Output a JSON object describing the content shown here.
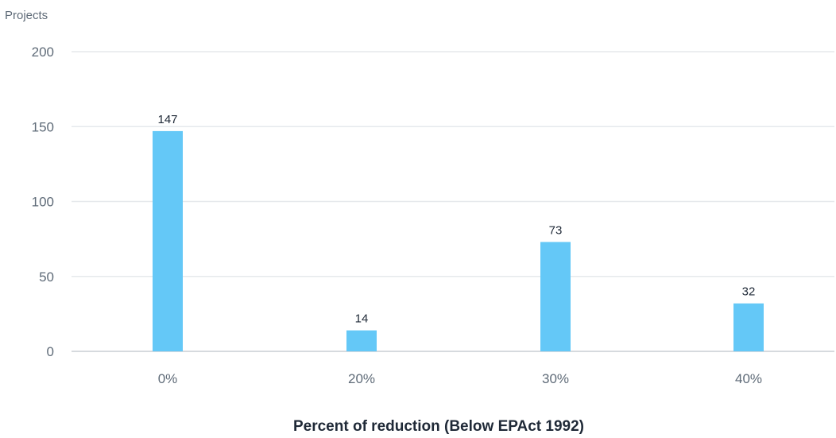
{
  "chart_data": {
    "type": "bar",
    "ylabel": "Projects",
    "xlabel": "Percent of reduction (Below EPAct 1992)",
    "categories": [
      "0%",
      "20%",
      "30%",
      "40%"
    ],
    "values": [
      147,
      14,
      73,
      32
    ],
    "data_labels": [
      "147",
      "14",
      "73",
      "32"
    ],
    "y_ticks": [
      0,
      50,
      100,
      150,
      200
    ],
    "ylim": [
      0,
      200
    ],
    "grid": true,
    "legend": "none",
    "bar_color": "#64c8f7"
  }
}
